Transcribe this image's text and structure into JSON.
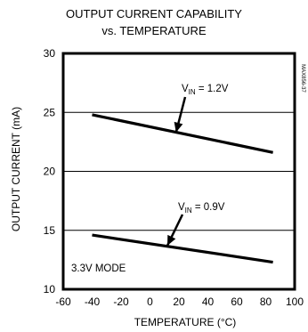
{
  "chart_data": {
    "type": "line",
    "title_lines": [
      "OUTPUT CURRENT CAPABILITY",
      "vs. TEMPERATURE"
    ],
    "xlabel": "TEMPERATURE (°C)",
    "ylabel": "OUTPUT CURRENT (mA)",
    "xlim": [
      -60,
      100
    ],
    "ylim": [
      10,
      30
    ],
    "xticks": [
      -60,
      -40,
      -20,
      0,
      20,
      40,
      60,
      80,
      100
    ],
    "yticks": [
      10,
      15,
      20,
      25,
      30
    ],
    "grid": true,
    "series": [
      {
        "name": "V_IN = 1.2V",
        "x": [
          -40,
          85
        ],
        "y": [
          24.8,
          21.6
        ]
      },
      {
        "name": "V_IN = 0.9V",
        "x": [
          -40,
          85
        ],
        "y": [
          14.6,
          12.3
        ]
      }
    ],
    "annotations": {
      "upper_label_main": "V",
      "upper_label_sub": "IN",
      "upper_label_rest": " = 1.2V",
      "lower_label_main": "V",
      "lower_label_sub": "IN",
      "lower_label_rest": " = 0.9V",
      "mode_label": "3.3V MODE",
      "side_code": "MAX856-37"
    }
  }
}
